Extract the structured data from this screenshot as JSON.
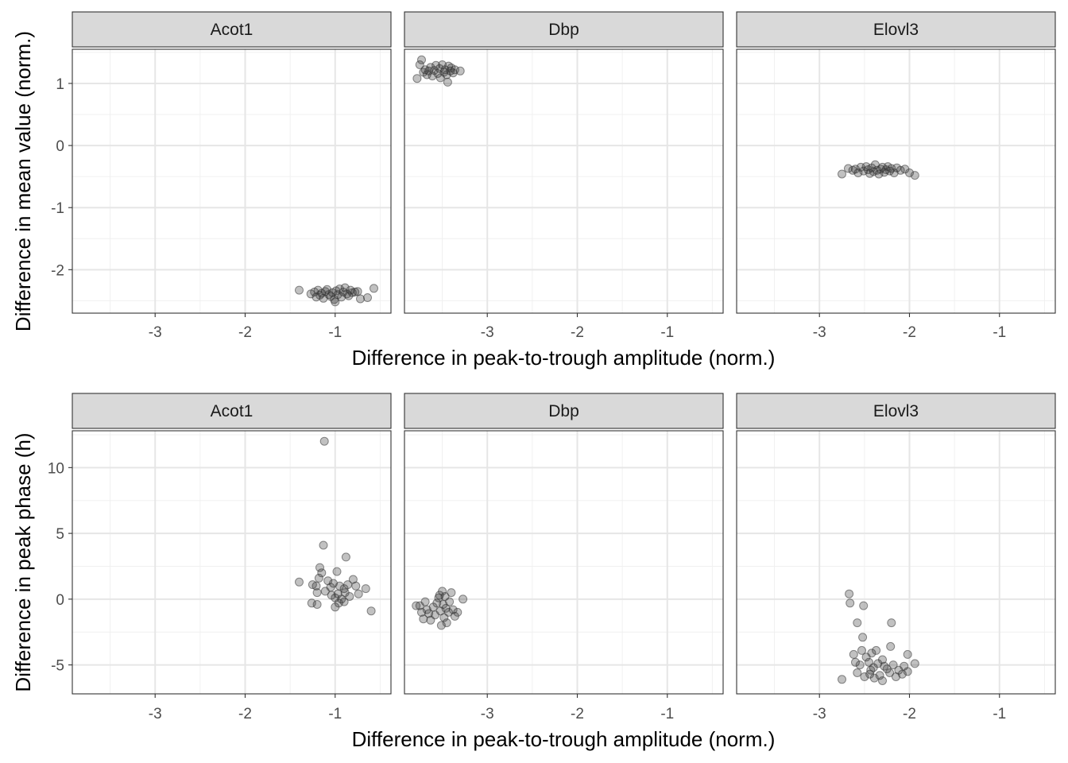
{
  "chart_data": [
    {
      "type": "scatter",
      "facets": [
        "Acot1",
        "Dbp",
        "Elovl3"
      ],
      "xlabel": "Difference in peak-to-trough amplitude (norm.)",
      "ylabel": "Difference in mean value (norm.)",
      "xticks": [
        -3,
        -2,
        -1
      ],
      "yticks": [
        -2,
        -1,
        0,
        1
      ],
      "xlim": [
        -3.92,
        -0.38
      ],
      "ylim": [
        -2.7,
        1.55
      ],
      "grid": true,
      "point_color": "#333333",
      "point_alpha": 0.3,
      "series": [
        {
          "facet": "Acot1",
          "points": [
            {
              "x": -1.4,
              "y": -2.33
            },
            {
              "x": -1.27,
              "y": -2.39
            },
            {
              "x": -1.23,
              "y": -2.36
            },
            {
              "x": -1.21,
              "y": -2.44
            },
            {
              "x": -1.19,
              "y": -2.33
            },
            {
              "x": -1.17,
              "y": -2.41
            },
            {
              "x": -1.15,
              "y": -2.38
            },
            {
              "x": -1.13,
              "y": -2.46
            },
            {
              "x": -1.11,
              "y": -2.35
            },
            {
              "x": -1.09,
              "y": -2.32
            },
            {
              "x": -1.07,
              "y": -2.4
            },
            {
              "x": -1.05,
              "y": -2.43
            },
            {
              "x": -1.03,
              "y": -2.37
            },
            {
              "x": -1.01,
              "y": -2.48
            },
            {
              "x": -1.0,
              "y": -2.52
            },
            {
              "x": -0.99,
              "y": -2.34
            },
            {
              "x": -0.97,
              "y": -2.4
            },
            {
              "x": -0.95,
              "y": -2.31
            },
            {
              "x": -0.93,
              "y": -2.44
            },
            {
              "x": -0.91,
              "y": -2.36
            },
            {
              "x": -0.89,
              "y": -2.29
            },
            {
              "x": -0.87,
              "y": -2.39
            },
            {
              "x": -0.85,
              "y": -2.42
            },
            {
              "x": -0.83,
              "y": -2.33
            },
            {
              "x": -0.81,
              "y": -2.37
            },
            {
              "x": -0.78,
              "y": -2.36
            },
            {
              "x": -0.75,
              "y": -2.35
            },
            {
              "x": -0.72,
              "y": -2.47
            },
            {
              "x": -0.64,
              "y": -2.45
            },
            {
              "x": -0.57,
              "y": -2.3
            }
          ]
        },
        {
          "facet": "Dbp",
          "points": [
            {
              "x": -3.78,
              "y": 1.08
            },
            {
              "x": -3.75,
              "y": 1.3
            },
            {
              "x": -3.73,
              "y": 1.38
            },
            {
              "x": -3.71,
              "y": 1.18
            },
            {
              "x": -3.69,
              "y": 1.22
            },
            {
              "x": -3.67,
              "y": 1.14
            },
            {
              "x": -3.65,
              "y": 1.2
            },
            {
              "x": -3.63,
              "y": 1.26
            },
            {
              "x": -3.61,
              "y": 1.12
            },
            {
              "x": -3.59,
              "y": 1.21
            },
            {
              "x": -3.57,
              "y": 1.29
            },
            {
              "x": -3.55,
              "y": 1.16
            },
            {
              "x": -3.53,
              "y": 1.24
            },
            {
              "x": -3.52,
              "y": 1.09
            },
            {
              "x": -3.5,
              "y": 1.3
            },
            {
              "x": -3.48,
              "y": 1.18
            },
            {
              "x": -3.47,
              "y": 1.22
            },
            {
              "x": -3.45,
              "y": 1.14
            },
            {
              "x": -3.44,
              "y": 1.02
            },
            {
              "x": -3.43,
              "y": 1.28
            },
            {
              "x": -3.41,
              "y": 1.2
            },
            {
              "x": -3.4,
              "y": 1.25
            },
            {
              "x": -3.38,
              "y": 1.17
            },
            {
              "x": -3.36,
              "y": 1.22
            },
            {
              "x": -3.3,
              "y": 1.2
            }
          ]
        },
        {
          "facet": "Elovl3",
          "points": [
            {
              "x": -2.75,
              "y": -0.46
            },
            {
              "x": -2.68,
              "y": -0.37
            },
            {
              "x": -2.63,
              "y": -0.4
            },
            {
              "x": -2.6,
              "y": -0.38
            },
            {
              "x": -2.57,
              "y": -0.44
            },
            {
              "x": -2.54,
              "y": -0.35
            },
            {
              "x": -2.51,
              "y": -0.41
            },
            {
              "x": -2.48,
              "y": -0.34
            },
            {
              "x": -2.46,
              "y": -0.39
            },
            {
              "x": -2.44,
              "y": -0.45
            },
            {
              "x": -2.42,
              "y": -0.36
            },
            {
              "x": -2.4,
              "y": -0.42
            },
            {
              "x": -2.38,
              "y": -0.31
            },
            {
              "x": -2.36,
              "y": -0.4
            },
            {
              "x": -2.34,
              "y": -0.46
            },
            {
              "x": -2.32,
              "y": -0.38
            },
            {
              "x": -2.3,
              "y": -0.35
            },
            {
              "x": -2.28,
              "y": -0.43
            },
            {
              "x": -2.26,
              "y": -0.39
            },
            {
              "x": -2.24,
              "y": -0.34
            },
            {
              "x": -2.22,
              "y": -0.41
            },
            {
              "x": -2.2,
              "y": -0.37
            },
            {
              "x": -2.17,
              "y": -0.44
            },
            {
              "x": -2.14,
              "y": -0.36
            },
            {
              "x": -2.1,
              "y": -0.4
            },
            {
              "x": -2.05,
              "y": -0.38
            },
            {
              "x": -2.0,
              "y": -0.44
            },
            {
              "x": -1.94,
              "y": -0.48
            }
          ]
        }
      ]
    },
    {
      "type": "scatter",
      "facets": [
        "Acot1",
        "Dbp",
        "Elovl3"
      ],
      "xlabel": "Difference in peak-to-trough amplitude (norm.)",
      "ylabel": "Difference in peak phase (h)",
      "xticks": [
        -3,
        -2,
        -1
      ],
      "yticks": [
        -5,
        0,
        5,
        10
      ],
      "xlim": [
        -3.92,
        -0.38
      ],
      "ylim": [
        -7.2,
        12.8
      ],
      "grid": true,
      "point_color": "#333333",
      "point_alpha": 0.3,
      "series": [
        {
          "facet": "Acot1",
          "points": [
            {
              "x": -1.12,
              "y": 12.0
            },
            {
              "x": -1.13,
              "y": 4.1
            },
            {
              "x": -0.88,
              "y": 3.2
            },
            {
              "x": -1.17,
              "y": 2.4
            },
            {
              "x": -1.15,
              "y": 2.0
            },
            {
              "x": -0.98,
              "y": 2.1
            },
            {
              "x": -1.4,
              "y": 1.3
            },
            {
              "x": -1.25,
              "y": 1.1
            },
            {
              "x": -1.21,
              "y": 1.0
            },
            {
              "x": -1.18,
              "y": 1.6
            },
            {
              "x": -1.08,
              "y": 1.4
            },
            {
              "x": -1.05,
              "y": 0.9
            },
            {
              "x": -1.02,
              "y": 1.2
            },
            {
              "x": -0.95,
              "y": 1.0
            },
            {
              "x": -0.9,
              "y": 0.8
            },
            {
              "x": -0.86,
              "y": 1.1
            },
            {
              "x": -0.8,
              "y": 1.5
            },
            {
              "x": -0.77,
              "y": 1.0
            },
            {
              "x": -1.2,
              "y": 0.5
            },
            {
              "x": -1.11,
              "y": 0.6
            },
            {
              "x": -1.04,
              "y": 0.3
            },
            {
              "x": -1.0,
              "y": 0.1
            },
            {
              "x": -0.97,
              "y": 0.4
            },
            {
              "x": -0.93,
              "y": 0.0
            },
            {
              "x": -0.89,
              "y": 0.5
            },
            {
              "x": -0.84,
              "y": 0.2
            },
            {
              "x": -0.74,
              "y": 0.4
            },
            {
              "x": -0.66,
              "y": 0.8
            },
            {
              "x": -1.26,
              "y": -0.3
            },
            {
              "x": -1.2,
              "y": -0.4
            },
            {
              "x": -1.0,
              "y": -0.6
            },
            {
              "x": -0.96,
              "y": -0.3
            },
            {
              "x": -0.9,
              "y": -0.2
            },
            {
              "x": -0.6,
              "y": -0.9
            }
          ]
        },
        {
          "facet": "Dbp",
          "points": [
            {
              "x": -3.79,
              "y": -0.5
            },
            {
              "x": -3.75,
              "y": -0.5
            },
            {
              "x": -3.73,
              "y": -1.0
            },
            {
              "x": -3.71,
              "y": -1.5
            },
            {
              "x": -3.69,
              "y": -0.2
            },
            {
              "x": -3.67,
              "y": -0.8
            },
            {
              "x": -3.65,
              "y": -1.1
            },
            {
              "x": -3.63,
              "y": -1.6
            },
            {
              "x": -3.6,
              "y": -0.6
            },
            {
              "x": -3.58,
              "y": -1.2
            },
            {
              "x": -3.56,
              "y": -0.3
            },
            {
              "x": -3.54,
              "y": 0.1
            },
            {
              "x": -3.53,
              "y": 0.3
            },
            {
              "x": -3.52,
              "y": -0.9
            },
            {
              "x": -3.51,
              "y": -2.0
            },
            {
              "x": -3.5,
              "y": 0.6
            },
            {
              "x": -3.49,
              "y": -0.4
            },
            {
              "x": -3.48,
              "y": -1.4
            },
            {
              "x": -3.47,
              "y": 0.2
            },
            {
              "x": -3.46,
              "y": -0.7
            },
            {
              "x": -3.45,
              "y": -1.8
            },
            {
              "x": -3.43,
              "y": -1.0
            },
            {
              "x": -3.42,
              "y": -0.2
            },
            {
              "x": -3.4,
              "y": 0.5
            },
            {
              "x": -3.38,
              "y": -0.8
            },
            {
              "x": -3.36,
              "y": -1.3
            },
            {
              "x": -3.33,
              "y": -1.0
            },
            {
              "x": -3.27,
              "y": 0.0
            }
          ]
        },
        {
          "facet": "Elovl3",
          "points": [
            {
              "x": -2.67,
              "y": 0.4
            },
            {
              "x": -2.66,
              "y": -0.3
            },
            {
              "x": -2.51,
              "y": -0.5
            },
            {
              "x": -2.58,
              "y": -1.8
            },
            {
              "x": -2.2,
              "y": -1.8
            },
            {
              "x": -2.52,
              "y": -2.9
            },
            {
              "x": -2.53,
              "y": -3.9
            },
            {
              "x": -2.21,
              "y": -3.6
            },
            {
              "x": -2.62,
              "y": -4.2
            },
            {
              "x": -2.48,
              "y": -4.4
            },
            {
              "x": -2.42,
              "y": -4.1
            },
            {
              "x": -2.37,
              "y": -3.9
            },
            {
              "x": -2.3,
              "y": -4.6
            },
            {
              "x": -2.02,
              "y": -4.2
            },
            {
              "x": -2.6,
              "y": -4.8
            },
            {
              "x": -2.55,
              "y": -5.0
            },
            {
              "x": -2.45,
              "y": -4.8
            },
            {
              "x": -2.4,
              "y": -5.2
            },
            {
              "x": -2.35,
              "y": -4.9
            },
            {
              "x": -2.28,
              "y": -5.1
            },
            {
              "x": -2.25,
              "y": -5.3
            },
            {
              "x": -2.18,
              "y": -5.0
            },
            {
              "x": -2.12,
              "y": -5.4
            },
            {
              "x": -2.06,
              "y": -5.1
            },
            {
              "x": -1.94,
              "y": -4.9
            },
            {
              "x": -2.58,
              "y": -5.6
            },
            {
              "x": -2.5,
              "y": -5.9
            },
            {
              "x": -2.44,
              "y": -5.7
            },
            {
              "x": -2.39,
              "y": -6.0
            },
            {
              "x": -2.33,
              "y": -5.8
            },
            {
              "x": -2.3,
              "y": -6.2
            },
            {
              "x": -2.22,
              "y": -5.6
            },
            {
              "x": -2.15,
              "y": -5.9
            },
            {
              "x": -2.08,
              "y": -5.7
            },
            {
              "x": -2.02,
              "y": -5.5
            },
            {
              "x": -2.75,
              "y": -6.1
            },
            {
              "x": -2.43,
              "y": -5.4
            }
          ]
        }
      ]
    }
  ]
}
